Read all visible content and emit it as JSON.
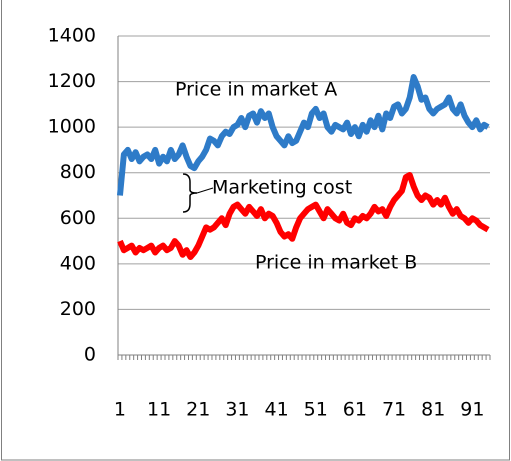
{
  "chart_data": {
    "type": "line",
    "categories": [
      "1",
      null,
      null,
      null,
      null,
      null,
      null,
      null,
      null,
      null,
      "11",
      null,
      null,
      null,
      null,
      null,
      null,
      null,
      null,
      null,
      "21",
      null,
      null,
      null,
      null,
      null,
      null,
      null,
      null,
      null,
      "31",
      null,
      null,
      null,
      null,
      null,
      null,
      null,
      null,
      null,
      "41",
      null,
      null,
      null,
      null,
      null,
      null,
      null,
      null,
      null,
      "51",
      null,
      null,
      null,
      null,
      null,
      null,
      null,
      null,
      null,
      "61",
      null,
      null,
      null,
      null,
      null,
      null,
      null,
      null,
      null,
      "71",
      null,
      null,
      null,
      null,
      null,
      null,
      null,
      null,
      null,
      "81",
      null,
      null,
      null,
      null,
      null,
      null,
      null,
      null,
      null,
      "91",
      null,
      null,
      null,
      null
    ],
    "series": [
      {
        "name": "Price in market A",
        "color": "#2e7bc8",
        "values": [
          700,
          880,
          900,
          860,
          890,
          850,
          870,
          880,
          860,
          900,
          840,
          870,
          850,
          900,
          860,
          880,
          920,
          870,
          830,
          820,
          850,
          870,
          900,
          950,
          940,
          920,
          960,
          980,
          970,
          1000,
          1010,
          1040,
          1000,
          1050,
          1060,
          1020,
          1070,
          1040,
          1060,
          1000,
          960,
          940,
          920,
          960,
          930,
          940,
          980,
          1020,
          1000,
          1060,
          1080,
          1040,
          1060,
          1000,
          980,
          1010,
          1000,
          990,
          1020,
          970,
          1000,
          960,
          1010,
          980,
          1030,
          1000,
          1050,
          990,
          1060,
          1040,
          1090,
          1100,
          1060,
          1080,
          1130,
          1220,
          1180,
          1120,
          1130,
          1080,
          1060,
          1080,
          1090,
          1100,
          1130,
          1080,
          1060,
          1100,
          1050,
          1020,
          1000,
          1030,
          990,
          1010,
          1000
        ]
      },
      {
        "name": "Price in market B",
        "color": "#ff0000",
        "values": [
          500,
          460,
          470,
          480,
          450,
          470,
          460,
          470,
          480,
          450,
          470,
          480,
          460,
          470,
          500,
          480,
          440,
          460,
          430,
          450,
          480,
          520,
          560,
          550,
          560,
          580,
          600,
          570,
          620,
          650,
          660,
          640,
          620,
          650,
          630,
          610,
          640,
          600,
          620,
          610,
          580,
          540,
          520,
          530,
          510,
          560,
          600,
          620,
          640,
          650,
          660,
          630,
          600,
          640,
          620,
          600,
          590,
          620,
          580,
          570,
          600,
          590,
          610,
          600,
          620,
          650,
          630,
          640,
          610,
          650,
          680,
          700,
          720,
          780,
          790,
          740,
          700,
          680,
          700,
          690,
          660,
          680,
          660,
          690,
          650,
          620,
          640,
          610,
          600,
          580,
          600,
          590,
          570,
          560,
          550
        ]
      }
    ],
    "annotations": [
      "Marketing cost"
    ],
    "ylim": [
      0,
      1400
    ],
    "yticks": [
      0,
      200,
      400,
      600,
      800,
      1000,
      1200,
      1400
    ],
    "grid": true
  }
}
